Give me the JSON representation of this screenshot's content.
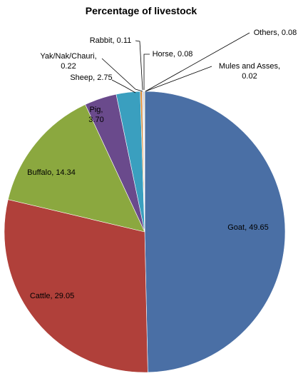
{
  "chart_data": {
    "type": "pie",
    "title": "Percentage of livestock",
    "slices": [
      {
        "label": "Goat",
        "value": 49.65,
        "display": "Goat, 49.65",
        "color": "#4A6FA5"
      },
      {
        "label": "Cattle",
        "value": 29.05,
        "display": "Cattle, 29.05",
        "color": "#B0403A"
      },
      {
        "label": "Buffalo",
        "value": 14.34,
        "display": "Buffalo, 14.34",
        "color": "#8BA83F"
      },
      {
        "label": "Pig",
        "value": 3.7,
        "display_lines": [
          "Pig,",
          "3.70"
        ],
        "color": "#6A4A8C"
      },
      {
        "label": "Sheep",
        "value": 2.75,
        "display": "Sheep, 2.75",
        "color": "#3A9FBF"
      },
      {
        "label": "Yak/Nak/Chauri",
        "value": 0.22,
        "display_lines": [
          "Yak/Nak/Chauri,",
          "0.22"
        ],
        "color": "#E08A30"
      },
      {
        "label": "Rabbit",
        "value": 0.11,
        "display": "Rabbit, 0.11",
        "color": "#8FA8D0"
      },
      {
        "label": "Horse",
        "value": 0.08,
        "display": "Horse, 0.08",
        "color": "#D08A88"
      },
      {
        "label": "Others",
        "value": 0.08,
        "display": "Others, 0.08",
        "color": "#B8CC88"
      },
      {
        "label": "Mules and Asses",
        "value": 0.02,
        "display_lines": [
          "Mules and Asses,",
          "0.02"
        ],
        "color": "#9E8CB8"
      }
    ],
    "legend": "none",
    "data_labels": "outside-and-inside"
  }
}
